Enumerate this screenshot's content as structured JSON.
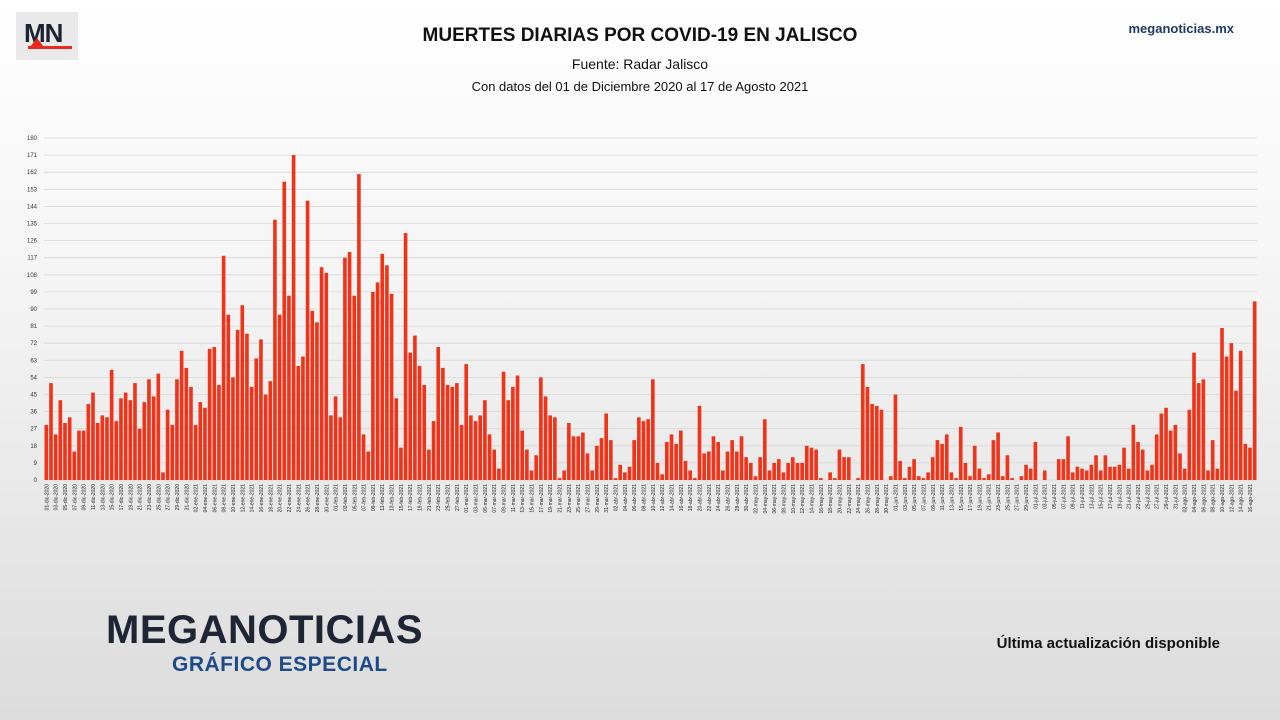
{
  "logo": {
    "mark": "MN"
  },
  "header": {
    "site": "meganoticias.mx",
    "title": "MUERTES DIARIAS POR COVID-19 EN JALISCO",
    "subtitle": "Fuente: Radar Jalisco",
    "subtitle2": "Con datos del 01 de Diciembre 2020 al 17 de Agosto 2021"
  },
  "footer": {
    "brand": "MEGANOTICIAS",
    "brand_sub": "GRÁFICO ESPECIAL",
    "update_note": "Última actualización disponible"
  },
  "colors": {
    "bar": "#f0341a",
    "grid": "#d8d8d8",
    "brand_blue": "#1e4a8a",
    "brand_red": "#e8291c"
  },
  "chart_data": {
    "type": "bar",
    "title": "MUERTES DIARIAS POR COVID-19 EN JALISCO",
    "xlabel": "",
    "ylabel": "",
    "ylim": [
      0,
      180
    ],
    "yticks": [
      0,
      9,
      18,
      27,
      36,
      45,
      54,
      63,
      72,
      81,
      90,
      99,
      108,
      117,
      126,
      135,
      144,
      153,
      162,
      171,
      180
    ],
    "grid": true,
    "start_date": "2020-12-01",
    "end_date": "2021-08-17",
    "tick_labels": [
      "01-dic-2020",
      "03-dic-2020",
      "05-dic-2020",
      "07-dic-2020",
      "09-dic-2020",
      "11-dic-2020",
      "13-dic-2020",
      "15-dic-2020",
      "17-dic-2020",
      "19-dic-2020",
      "21-dic-2020",
      "23-dic-2020",
      "25-dic-2020",
      "27-dic-2020",
      "29-dic-2020",
      "31-dic-2020",
      "02-ene-2021",
      "04-ene-2021",
      "06-ene-2021",
      "08-ene-2021",
      "10-ene-2021",
      "12-ene-2021",
      "14-ene-2021",
      "16-ene-2021",
      "18-ene-2021",
      "20-ene-2021",
      "22-ene-2021",
      "24-ene-2021",
      "26-ene-2021",
      "28-ene-2021",
      "30-ene-2021",
      "01-feb-2021",
      "03-feb-2021",
      "05-feb-2021",
      "07-feb-2021",
      "09-feb-2021",
      "11-feb-2021",
      "13-feb-2021",
      "15-feb-2021",
      "17-feb-2021",
      "19-feb-2021",
      "21-feb-2021",
      "23-feb-2021",
      "25-feb-2021",
      "27-feb-2021",
      "01-mar-2021",
      "03-mar-2021",
      "05-mar-2021",
      "07-mar-2021",
      "09-mar-2021",
      "11-mar-2021",
      "13-mar-2021",
      "15-mar-2021",
      "17-mar-2021",
      "19-mar-2021",
      "21-mar-2021",
      "23-mar-2021",
      "25-mar-2021",
      "27-mar-2021",
      "29-mar-2021",
      "31-mar-2021",
      "02-abr-2021",
      "04-abr-2021",
      "06-abr-2021",
      "08-abr-2021",
      "10-abr-2021",
      "12-abr-2021",
      "14-abr-2021",
      "16-abr-2021",
      "18-abr-2021",
      "20-abr-2021",
      "22-abr-2021",
      "24-abr-2021",
      "26-abr-2021",
      "28-abr-2021",
      "30-abr-2021",
      "02-may-2021",
      "04-may-2021",
      "06-may-2021",
      "08-may-2021",
      "10-may-2021",
      "12-may-2021",
      "14-may-2021",
      "16-may-2021",
      "18-may-2021",
      "20-may-2021",
      "22-may-2021",
      "24-may-2021",
      "26-may-2021",
      "28-may-2021",
      "30-may-2021",
      "01-jun-2021",
      "03-jun-2021",
      "05-jun-2021",
      "07-jun-2021",
      "09-jun-2021",
      "11-jun-2021",
      "13-jun-2021",
      "15-jun-2021",
      "17-jun-2021",
      "19-jun-2021",
      "21-jun-2021",
      "23-jun-2021",
      "25-jun-2021",
      "27-jun-2021",
      "29-jun-2021",
      "01-jul-2021",
      "03-jul-2021",
      "05-jul-2021",
      "07-jul-2021",
      "09-jul-2021",
      "11-jul-2021",
      "13-jul-2021",
      "15-jul-2021",
      "17-jul-2021",
      "19-jul-2021",
      "21-jul-2021",
      "23-jul-2021",
      "25-jul-2021",
      "27-jul-2021",
      "29-jul-2021",
      "31-jul-2021",
      "02-ago-2021",
      "04-ago-2021",
      "06-ago-2021",
      "08-ago-2021",
      "10-ago-2021",
      "12-ago-2021",
      "14-ago-2021",
      "16-ago-2021"
    ],
    "values": [
      29,
      51,
      24,
      42,
      30,
      33,
      15,
      26,
      26,
      40,
      46,
      30,
      34,
      33,
      58,
      31,
      43,
      46,
      42,
      51,
      27,
      41,
      53,
      44,
      56,
      4,
      37,
      29,
      53,
      68,
      59,
      49,
      29,
      41,
      38,
      69,
      70,
      50,
      118,
      87,
      54,
      79,
      92,
      77,
      49,
      64,
      74,
      45,
      52,
      137,
      87,
      157,
      97,
      171,
      60,
      65,
      147,
      89,
      83,
      112,
      109,
      34,
      44,
      33,
      117,
      120,
      97,
      161,
      24,
      15,
      99,
      104,
      119,
      113,
      98,
      43,
      17,
      130,
      67,
      76,
      60,
      50,
      16,
      31,
      70,
      59,
      50,
      49,
      51,
      29,
      61,
      34,
      31,
      34,
      42,
      24,
      16,
      6,
      57,
      42,
      49,
      55,
      26,
      16,
      5,
      13,
      54,
      44,
      34,
      33,
      1,
      5,
      30,
      23,
      23,
      25,
      14,
      5,
      18,
      22,
      35,
      21,
      1,
      8,
      4,
      7,
      21,
      33,
      31,
      32,
      53,
      9,
      3,
      20,
      24,
      19,
      26,
      10,
      5,
      1,
      39,
      14,
      15,
      23,
      20,
      5,
      15,
      21,
      15,
      23,
      12,
      9,
      2,
      12,
      32,
      5,
      9,
      11,
      4,
      9,
      12,
      9,
      9,
      18,
      17,
      16,
      1,
      0,
      4,
      1,
      16,
      12,
      12,
      0,
      1,
      61,
      49,
      40,
      39,
      37,
      0,
      2,
      45,
      10,
      1,
      7,
      11,
      2,
      1,
      4,
      12,
      21,
      19,
      24,
      4,
      1,
      28,
      9,
      2,
      18,
      6,
      1,
      3,
      21,
      25,
      2,
      13,
      1,
      0,
      2,
      8,
      6,
      20,
      0,
      5,
      0,
      0,
      11,
      11,
      23,
      4,
      7,
      6,
      5,
      8,
      13,
      5,
      13,
      7,
      7,
      8,
      17,
      6,
      29,
      20,
      16,
      5,
      8,
      24,
      35,
      38,
      26,
      29,
      14,
      6,
      37,
      67,
      51,
      53,
      5,
      21,
      6,
      80,
      65,
      72,
      47,
      68,
      19,
      17,
      94
    ]
  }
}
